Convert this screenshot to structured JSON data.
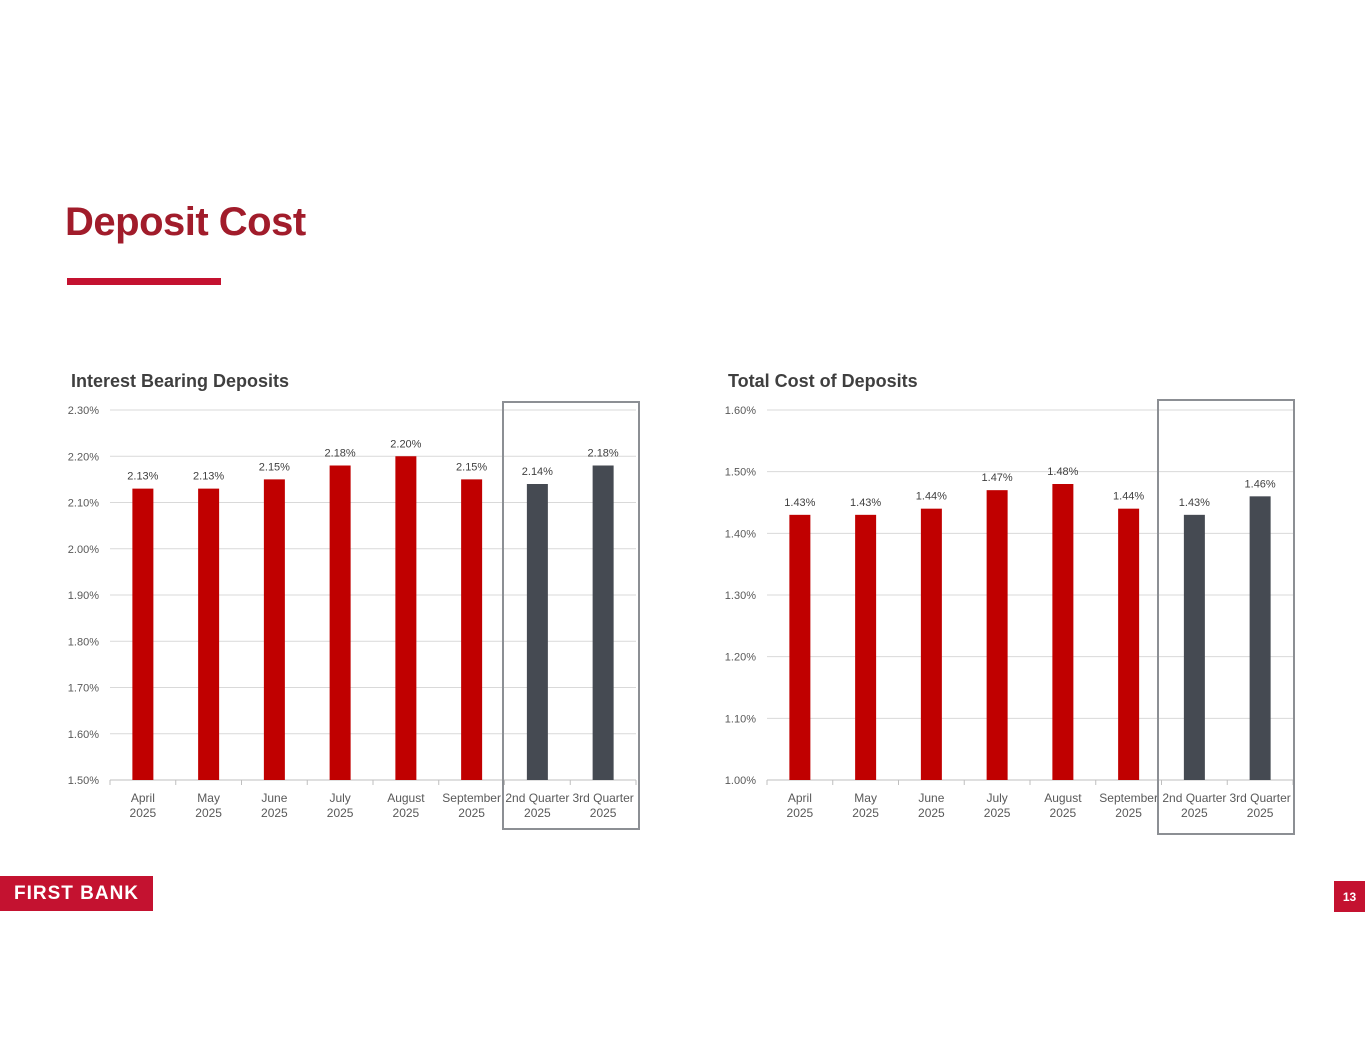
{
  "page": {
    "title": "Deposit Cost",
    "page_number": "13"
  },
  "logo": {
    "text": "FIRST BANK"
  },
  "colors": {
    "brand": "#a11c2b",
    "monthly_bar": "#c00000",
    "quarter_bar": "#454a52",
    "highlight_box": "#8c8f94"
  },
  "chart_data": [
    {
      "type": "bar",
      "title": "Interest Bearing Deposits",
      "categories": [
        [
          "April",
          "2025"
        ],
        [
          "May",
          "2025"
        ],
        [
          "June",
          "2025"
        ],
        [
          "July",
          "2025"
        ],
        [
          "August",
          "2025"
        ],
        [
          "September",
          "2025"
        ],
        [
          "2nd Quarter",
          "2025"
        ],
        [
          "3rd Quarter",
          "2025"
        ]
      ],
      "values": [
        2.13,
        2.13,
        2.15,
        2.18,
        2.2,
        2.15,
        2.14,
        2.18
      ],
      "data_labels": [
        "2.13%",
        "2.13%",
        "2.15%",
        "2.18%",
        "2.20%",
        "2.15%",
        "2.14%",
        "2.18%"
      ],
      "bar_groups": [
        "month",
        "month",
        "month",
        "month",
        "month",
        "month",
        "quarter",
        "quarter"
      ],
      "ylim": [
        1.5,
        2.3
      ],
      "yticks": [
        "1.50%",
        "1.60%",
        "1.70%",
        "1.80%",
        "1.90%",
        "2.00%",
        "2.10%",
        "2.20%",
        "2.30%"
      ],
      "ytick_values": [
        1.5,
        1.6,
        1.7,
        1.8,
        1.9,
        2.0,
        2.1,
        2.2,
        2.3
      ],
      "grid": true,
      "highlight": "quarters"
    },
    {
      "type": "bar",
      "title": "Total Cost of Deposits",
      "categories": [
        [
          "April",
          "2025"
        ],
        [
          "May",
          "2025"
        ],
        [
          "June",
          "2025"
        ],
        [
          "July",
          "2025"
        ],
        [
          "August",
          "2025"
        ],
        [
          "September",
          "2025"
        ],
        [
          "2nd Quarter",
          "2025"
        ],
        [
          "3rd Quarter",
          "2025"
        ]
      ],
      "values": [
        1.43,
        1.43,
        1.44,
        1.47,
        1.48,
        1.44,
        1.43,
        1.46
      ],
      "data_labels": [
        "1.43%",
        "1.43%",
        "1.44%",
        "1.47%",
        "1.48%",
        "1.44%",
        "1.43%",
        "1.46%"
      ],
      "bar_groups": [
        "month",
        "month",
        "month",
        "month",
        "month",
        "month",
        "quarter",
        "quarter"
      ],
      "ylim": [
        1.0,
        1.6
      ],
      "yticks": [
        "1.00%",
        "1.10%",
        "1.20%",
        "1.30%",
        "1.40%",
        "1.50%",
        "1.60%"
      ],
      "ytick_values": [
        1.0,
        1.1,
        1.2,
        1.3,
        1.4,
        1.5,
        1.6
      ],
      "grid": true,
      "highlight": "quarters"
    }
  ]
}
